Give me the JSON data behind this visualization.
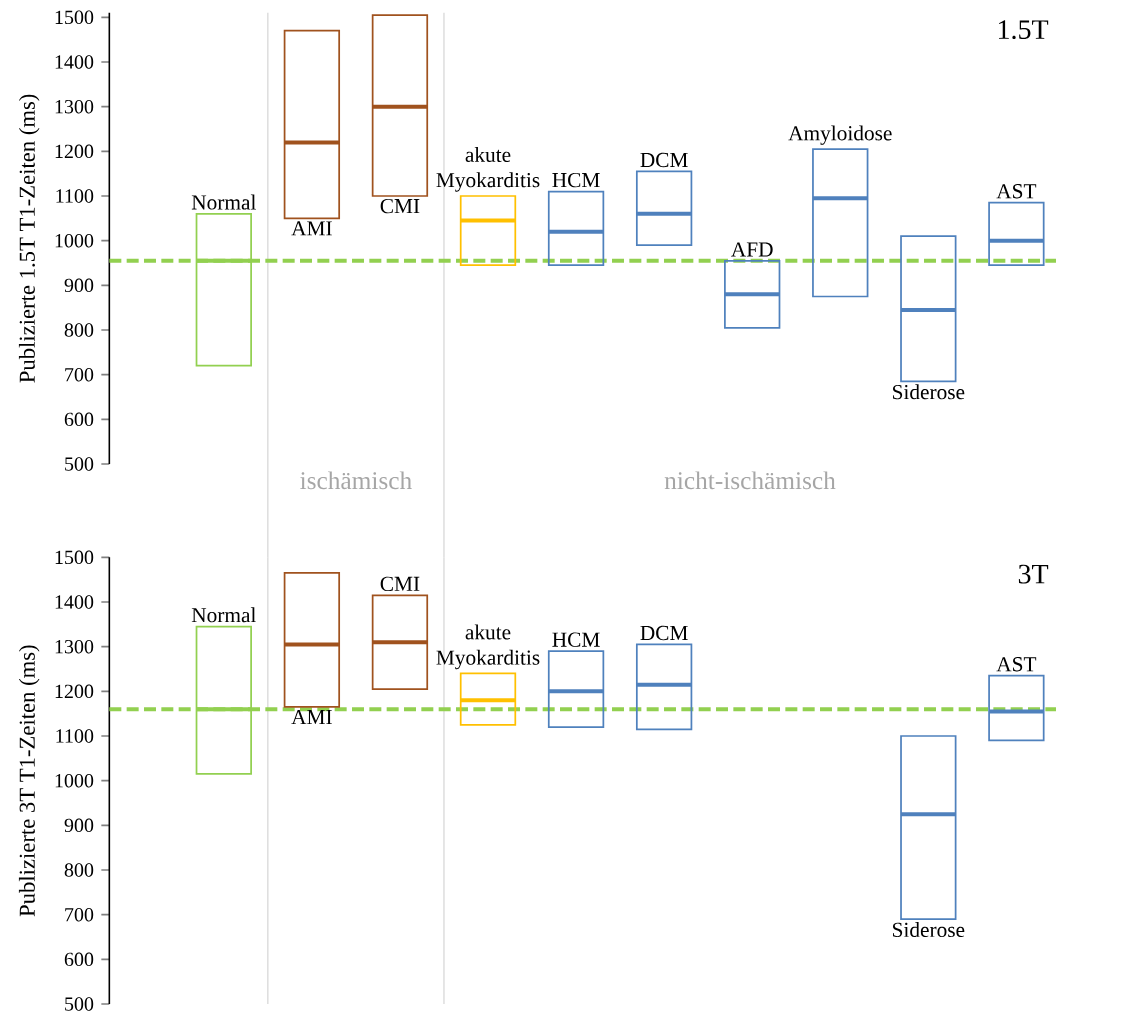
{
  "chart_data": [
    {
      "type": "box",
      "title": "1.5T",
      "ylabel": "Publizierte 1.5T T1-Zeiten  (ms)",
      "categories": [
        "Normal",
        "AMI",
        "CMI",
        "akute Myokarditis",
        "HCM",
        "DCM",
        "AFD",
        "Amyloidose",
        "Siderose",
        "AST"
      ],
      "colors": [
        "#92d050",
        "#a0521e",
        "#a0521e",
        "#ffc000",
        "#4f81bd",
        "#4f81bd",
        "#4f81bd",
        "#4f81bd",
        "#4f81bd",
        "#4f81bd"
      ],
      "boxes": [
        {
          "low": 720,
          "q1": 720,
          "median": 955,
          "q3": 1060,
          "high": 1060
        },
        {
          "low": 1050,
          "q1": 1050,
          "median": 1220,
          "q3": 1470,
          "high": 1470
        },
        {
          "low": 1100,
          "q1": 1100,
          "median": 1300,
          "q3": 1505,
          "high": 1505
        },
        {
          "low": 945,
          "q1": 945,
          "median": 1045,
          "q3": 1100,
          "high": 1100
        },
        {
          "low": 945,
          "q1": 945,
          "median": 1020,
          "q3": 1110,
          "high": 1110
        },
        {
          "low": 990,
          "q1": 990,
          "median": 1060,
          "q3": 1155,
          "high": 1155
        },
        {
          "low": 805,
          "q1": 805,
          "median": 880,
          "q3": 955,
          "high": 955
        },
        {
          "low": 875,
          "q1": 875,
          "median": 1095,
          "q3": 1205,
          "high": 1205
        },
        {
          "low": 685,
          "q1": 685,
          "median": 845,
          "q3": 1010,
          "high": 1010
        },
        {
          "low": 945,
          "q1": 945,
          "median": 1000,
          "q3": 1085,
          "high": 1085
        }
      ],
      "ylim": [
        500,
        1510
      ],
      "yticks": [
        500,
        600,
        700,
        800,
        900,
        1000,
        1100,
        1200,
        1300,
        1400,
        1500
      ],
      "ref_lines": [
        {
          "axis": "y",
          "value": 955,
          "color": "#92d050",
          "line_style": "dashed"
        }
      ],
      "annotations": [
        "ischämisch",
        "nicht-ischämisch"
      ]
    },
    {
      "type": "box",
      "title": "3T",
      "ylabel": "Publizierte 3T T1-Zeiten (ms)",
      "categories": [
        "Normal",
        "AMI",
        "CMI",
        "akute Myokarditis",
        "HCM",
        "DCM",
        null,
        null,
        "Siderose",
        "AST"
      ],
      "colors": [
        "#92d050",
        "#a0521e",
        "#a0521e",
        "#ffc000",
        "#4f81bd",
        "#4f81bd",
        "#4f81bd",
        "#4f81bd",
        "#4f81bd",
        "#4f81bd"
      ],
      "boxes": [
        {
          "low": 1015,
          "q1": 1015,
          "median": 1160,
          "q3": 1345,
          "high": 1345
        },
        {
          "low": 1165,
          "q1": 1165,
          "median": 1305,
          "q3": 1465,
          "high": 1465
        },
        {
          "low": 1205,
          "q1": 1205,
          "median": 1310,
          "q3": 1415,
          "high": 1415
        },
        {
          "low": 1125,
          "q1": 1125,
          "median": 1180,
          "q3": 1240,
          "high": 1240
        },
        {
          "low": 1120,
          "q1": 1120,
          "median": 1200,
          "q3": 1290,
          "high": 1290
        },
        {
          "low": 1115,
          "q1": 1115,
          "median": 1215,
          "q3": 1305,
          "high": 1305
        },
        null,
        null,
        {
          "low": 690,
          "q1": 690,
          "median": 925,
          "q3": 1100,
          "high": 1100
        },
        {
          "low": 1090,
          "q1": 1090,
          "median": 1155,
          "q3": 1235,
          "high": 1235
        }
      ],
      "ylim": [
        500,
        1500
      ],
      "yticks": [
        500,
        600,
        700,
        800,
        900,
        1000,
        1100,
        1200,
        1300,
        1400,
        1500
      ],
      "ref_lines": [
        {
          "axis": "y",
          "value": 1160,
          "color": "#92d050",
          "line_style": "dashed"
        }
      ]
    }
  ]
}
